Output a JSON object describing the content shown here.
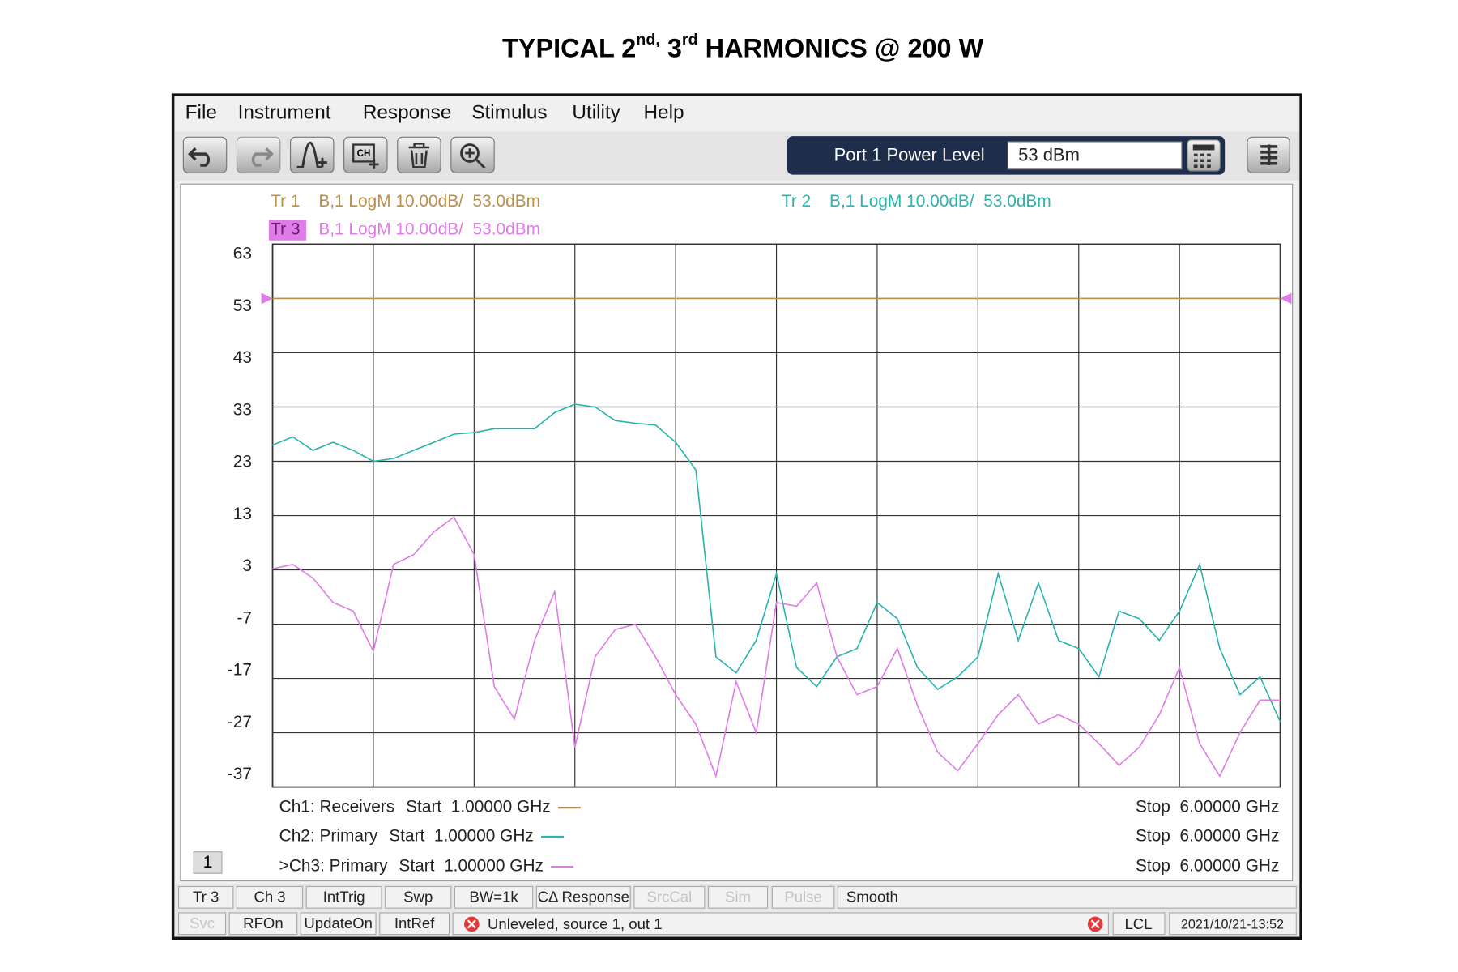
{
  "title": [
    "TYPICAL 2",
    "nd,",
    " 3",
    "rd",
    " HARMONICS @ 200 W"
  ],
  "menu": [
    "File",
    "Instrument",
    "Response",
    "Stimulus",
    "Utility",
    "Help"
  ],
  "power": {
    "label": "Port 1 Power Level",
    "value": "53 dBm"
  },
  "chart_data": {
    "type": "line",
    "trace_header": [
      "B,1 LogM 10.00dB/  53.0dBm",
      "B,1 LogM 10.00dB/  53.0dBm",
      "B,1 LogM 10.00dB/  53.0dBm"
    ],
    "x": [
      1,
      1.1,
      1.2,
      1.3,
      1.4,
      1.5,
      1.6,
      1.7,
      1.8,
      1.9,
      2,
      2.1,
      2.2,
      2.3,
      2.4,
      2.5,
      2.6,
      2.7,
      2.8,
      2.9,
      3,
      3.1,
      3.2,
      3.3,
      3.4,
      3.5,
      3.6,
      3.7,
      3.8,
      3.9,
      4,
      4.1,
      4.2,
      4.3,
      4.4,
      4.5,
      4.6,
      4.7,
      4.8,
      4.9,
      5,
      5.1,
      5.2,
      5.3,
      5.4,
      5.5,
      5.6,
      5.7,
      5.8,
      5.9,
      6
    ],
    "xlim": [
      1,
      6
    ],
    "xticks": [
      1,
      1.5,
      2,
      2.5,
      3,
      3.5,
      4,
      4.5,
      5,
      5.5,
      6
    ],
    "ylim": [
      -37,
      63
    ],
    "yticks": [
      63,
      53,
      43,
      33,
      23,
      13,
      3,
      -7,
      -17,
      -27,
      -37
    ],
    "grid": true,
    "series": [
      {
        "name": "Tr 1",
        "color": "#b8904a",
        "values": [
          53,
          53,
          53,
          53,
          53,
          53,
          53,
          53,
          53,
          53,
          53,
          53,
          53,
          53,
          53,
          53,
          53,
          53,
          53,
          53,
          53,
          53,
          53,
          53,
          53,
          53,
          53,
          53,
          53,
          53,
          53,
          53,
          53,
          53,
          53,
          53,
          53,
          53,
          53,
          53,
          53,
          53,
          53,
          53,
          53,
          53,
          53,
          53,
          53,
          53,
          53
        ]
      },
      {
        "name": "Tr 2",
        "color": "#2bb3ae",
        "values": [
          26,
          27.5,
          25,
          26.5,
          25,
          23,
          23.5,
          25,
          26.5,
          28,
          28.3,
          29,
          29,
          29,
          32,
          33.5,
          33,
          30.5,
          30,
          29.7,
          26.5,
          21.4,
          -13,
          -16,
          -10,
          2.3,
          -15,
          -18.5,
          -13,
          -11.5,
          -3,
          -6,
          -15,
          -19,
          -16.7,
          -13,
          2.3,
          -10,
          0.6,
          -10,
          -11.5,
          -16.7,
          -4.6,
          -6,
          -10,
          -4.6,
          4,
          -11.5,
          -20,
          -16.7,
          -25
        ]
      },
      {
        "name": "Tr 3",
        "color": "#e07ce8",
        "values": [
          3.2,
          4,
          1.5,
          -3,
          -4.6,
          -12,
          4,
          5.8,
          10,
          12.7,
          5.8,
          -18.5,
          -24.5,
          -10,
          -1,
          -29.7,
          -13,
          -8,
          -7,
          -13,
          -20,
          -25.4,
          -35,
          -17.6,
          -27,
          -3,
          -3.7,
          0.6,
          -13,
          -20,
          -18.5,
          -11.5,
          -22,
          -30.6,
          -34,
          -29,
          -23.7,
          -20,
          -25.4,
          -23.7,
          -25.4,
          -29,
          -33,
          -29.7,
          -23.7,
          -15,
          -29,
          -35,
          -27,
          -21,
          -21
        ]
      }
    ]
  },
  "channels": [
    {
      "label": "Ch1: Receivers",
      "start": "Start  1.00000 GHz",
      "stop": "Stop  6.00000 GHz"
    },
    {
      "label": "Ch2: Primary",
      "start": "Start  1.00000 GHz",
      "stop": "Stop  6.00000 GHz"
    },
    {
      "label": ">Ch3: Primary",
      "start": "Start  1.00000 GHz",
      "stop": "Stop  6.00000 GHz"
    }
  ],
  "window_number": "1",
  "softkeys": [
    {
      "label": "Tr 3",
      "enabled": true
    },
    {
      "label": "Ch 3",
      "enabled": true
    },
    {
      "label": "IntTrig",
      "enabled": true
    },
    {
      "label": "Swp",
      "enabled": true
    },
    {
      "label": "BW=1k",
      "enabled": true
    },
    {
      "label": "CΔ Response",
      "enabled": true
    },
    {
      "label": "SrcCal",
      "enabled": false
    },
    {
      "label": "Sim",
      "enabled": false
    },
    {
      "label": "Pulse",
      "enabled": false
    },
    {
      "label": "Smooth",
      "enabled": true
    }
  ],
  "status_keys": [
    {
      "label": "Svc",
      "enabled": false
    },
    {
      "label": "RFOn",
      "enabled": true
    },
    {
      "label": "UpdateOn",
      "enabled": true
    },
    {
      "label": "IntRef",
      "enabled": true
    }
  ],
  "status_message": "Unleveled, source 1, out 1",
  "remote": "LCL",
  "timestamp": "2021/10/21-13:52"
}
